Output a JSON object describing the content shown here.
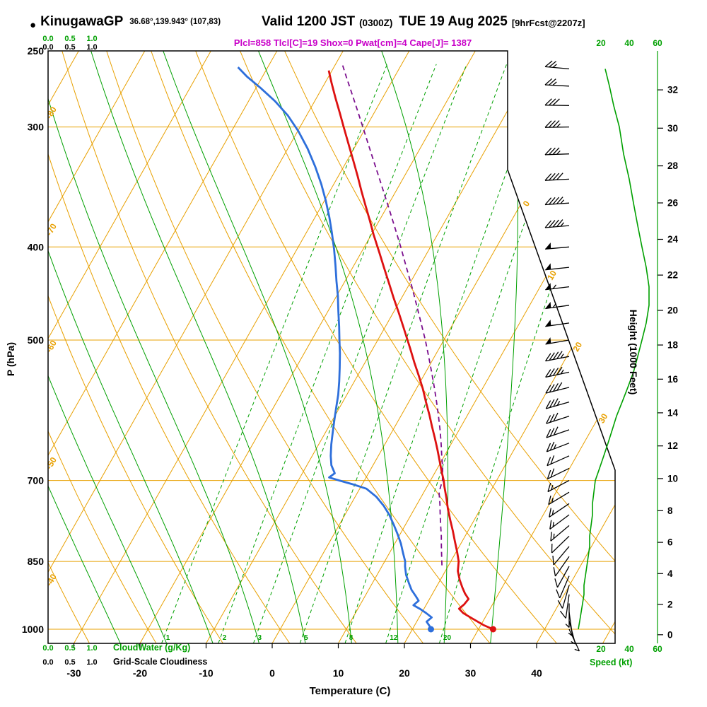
{
  "header": {
    "bullet": "●",
    "station": "KinugawaGP",
    "coords": "36.68°,139.943° (107,83)",
    "valid": "Valid 1200 JST",
    "zulu": "(0300Z)",
    "date": "TUE 19 Aug 2025",
    "fcst": "[9hrFcst@2207z]",
    "params": "Plcl=858 Tlcl[C]=19 Shox=0 Pwat[cm]=4 Cape[J]= 1387"
  },
  "axes": {
    "pressure_title": "P (hPa)",
    "temp_title": "Temperature (C)",
    "height_title": "Height (1000 Feet)",
    "speed_title": "Speed (kt)",
    "pressure_ticks": [
      250,
      300,
      400,
      500,
      700,
      850,
      1000
    ],
    "temp_ticks": [
      -30,
      -20,
      -10,
      0,
      10,
      20,
      30,
      40
    ],
    "height_ticks": [
      0,
      2,
      4,
      6,
      8,
      10,
      12,
      14,
      16,
      18,
      20,
      22,
      24,
      26,
      28,
      30,
      32
    ],
    "speed_ticks": [
      20,
      40,
      60
    ]
  },
  "scales": {
    "ticks": [
      "0.0",
      "0.5",
      "1.0"
    ],
    "cloudwater_label": "CloudWater (g/Kg)",
    "cloudiness_label": "Grid-Scale Cloudiness"
  },
  "colors": {
    "orange": "#E8A000",
    "green": "#00A000",
    "red": "#DD1111",
    "blue": "#2E6FDB",
    "purple": "#7B0F8E",
    "magenta": "#C800C8",
    "black": "#000000"
  },
  "chart_data": {
    "type": "skew-t-log-p",
    "pressure_range_hpa": [
      250,
      1034
    ],
    "pressure_lines_hpa": [
      300,
      400,
      500,
      700,
      850,
      1000
    ],
    "isotherm_step_c": 10,
    "isotherm_labels_left_c": [
      -40,
      -50,
      -60,
      -70,
      -80
    ],
    "isotherm_labels_right_c": [
      0,
      10,
      20,
      30
    ],
    "dry_adiabat_theta_c": [
      -60,
      -50,
      -40,
      -30,
      -20,
      -10,
      0,
      10,
      20,
      30,
      40,
      50,
      60
    ],
    "moist_adiabat_starts_c": [
      33,
      26,
      19,
      12,
      5,
      -2,
      -9,
      -16,
      -23
    ],
    "mixing_ratio_g_per_kg": [
      1,
      2,
      3,
      5,
      8,
      12,
      20
    ],
    "temperature_profile_p_c": [
      [
        1000,
        32.2
      ],
      [
        990,
        30.4
      ],
      [
        975,
        28.2
      ],
      [
        962,
        26.3
      ],
      [
        952,
        25.3
      ],
      [
        942,
        25.7
      ],
      [
        930,
        25.9
      ],
      [
        918,
        24.9
      ],
      [
        905,
        24.0
      ],
      [
        888,
        22.9
      ],
      [
        870,
        21.9
      ],
      [
        850,
        21.2
      ],
      [
        830,
        20.1
      ],
      [
        810,
        18.9
      ],
      [
        790,
        17.7
      ],
      [
        770,
        16.4
      ],
      [
        750,
        15.1
      ],
      [
        730,
        13.9
      ],
      [
        710,
        12.6
      ],
      [
        700,
        12.0
      ],
      [
        685,
        10.9
      ],
      [
        668,
        9.7
      ],
      [
        650,
        8.4
      ],
      [
        632,
        7.0
      ],
      [
        615,
        5.6
      ],
      [
        598,
        4.2
      ],
      [
        580,
        2.6
      ],
      [
        562,
        1.0
      ],
      [
        545,
        -0.7
      ],
      [
        528,
        -2.5
      ],
      [
        510,
        -4.4
      ],
      [
        500,
        -5.5
      ],
      [
        485,
        -7.2
      ],
      [
        468,
        -9.2
      ],
      [
        452,
        -11.2
      ],
      [
        436,
        -13.2
      ],
      [
        420,
        -15.3
      ],
      [
        405,
        -17.3
      ],
      [
        400,
        -18.0
      ],
      [
        388,
        -19.7
      ],
      [
        375,
        -21.5
      ],
      [
        362,
        -23.4
      ],
      [
        350,
        -25.2
      ],
      [
        338,
        -27.0
      ],
      [
        325,
        -29.1
      ],
      [
        312,
        -31.3
      ],
      [
        300,
        -33.4
      ],
      [
        290,
        -35.2
      ],
      [
        280,
        -37.1
      ],
      [
        270,
        -39.0
      ],
      [
        262,
        -40.5
      ]
    ],
    "dewpoint_profile_p_c": [
      [
        1000,
        22.8
      ],
      [
        992,
        22.3
      ],
      [
        982,
        21.5
      ],
      [
        972,
        21.9
      ],
      [
        962,
        20.7
      ],
      [
        953,
        19.5
      ],
      [
        944,
        18.1
      ],
      [
        934,
        18.5
      ],
      [
        924,
        17.7
      ],
      [
        910,
        16.5
      ],
      [
        895,
        15.5
      ],
      [
        878,
        14.4
      ],
      [
        860,
        13.5
      ],
      [
        850,
        13.1
      ],
      [
        832,
        12.0
      ],
      [
        814,
        10.9
      ],
      [
        796,
        9.6
      ],
      [
        778,
        8.2
      ],
      [
        760,
        6.7
      ],
      [
        744,
        5.1
      ],
      [
        728,
        3.2
      ],
      [
        714,
        1.0
      ],
      [
        706,
        -1.6
      ],
      [
        700,
        -3.8
      ],
      [
        695,
        -5.6
      ],
      [
        688,
        -5.1
      ],
      [
        675,
        -6.3
      ],
      [
        660,
        -7.2
      ],
      [
        642,
        -8.1
      ],
      [
        624,
        -8.9
      ],
      [
        606,
        -9.7
      ],
      [
        588,
        -10.5
      ],
      [
        570,
        -11.3
      ],
      [
        552,
        -12.3
      ],
      [
        534,
        -13.4
      ],
      [
        516,
        -14.6
      ],
      [
        500,
        -15.8
      ],
      [
        484,
        -17.0
      ],
      [
        467,
        -18.4
      ],
      [
        450,
        -19.8
      ],
      [
        434,
        -21.3
      ],
      [
        418,
        -22.8
      ],
      [
        402,
        -24.4
      ],
      [
        386,
        -26.2
      ],
      [
        372,
        -27.9
      ],
      [
        358,
        -29.8
      ],
      [
        344,
        -31.9
      ],
      [
        330,
        -34.3
      ],
      [
        316,
        -37.0
      ],
      [
        303,
        -39.9
      ],
      [
        292,
        -42.8
      ],
      [
        282,
        -46.0
      ],
      [
        273,
        -49.4
      ],
      [
        266,
        -52.3
      ],
      [
        260,
        -54.5
      ]
    ],
    "parcel_profile_p_c": [
      [
        858,
        19.0
      ],
      [
        840,
        18.2
      ],
      [
        820,
        17.3
      ],
      [
        800,
        16.4
      ],
      [
        780,
        15.4
      ],
      [
        760,
        14.4
      ],
      [
        740,
        13.4
      ],
      [
        720,
        12.3
      ],
      [
        700,
        11.8
      ],
      [
        680,
        10.8
      ],
      [
        660,
        9.6
      ],
      [
        640,
        8.4
      ],
      [
        620,
        7.1
      ],
      [
        600,
        5.7
      ],
      [
        580,
        4.2
      ],
      [
        560,
        2.6
      ],
      [
        540,
        0.9
      ],
      [
        520,
        -0.9
      ],
      [
        500,
        -2.8
      ],
      [
        480,
        -4.9
      ],
      [
        460,
        -7.1
      ],
      [
        440,
        -9.4
      ],
      [
        420,
        -11.9
      ],
      [
        400,
        -14.5
      ],
      [
        380,
        -17.3
      ],
      [
        360,
        -20.3
      ],
      [
        340,
        -23.5
      ],
      [
        320,
        -26.9
      ],
      [
        300,
        -30.5
      ],
      [
        288,
        -32.8
      ],
      [
        276,
        -35.2
      ],
      [
        266,
        -37.3
      ],
      [
        258,
        -39.0
      ]
    ],
    "wind_profile_p_dir_kt": [
      [
        1000,
        155,
        4
      ],
      [
        980,
        165,
        5
      ],
      [
        960,
        172,
        6
      ],
      [
        940,
        180,
        7
      ],
      [
        920,
        188,
        8
      ],
      [
        900,
        196,
        8
      ],
      [
        880,
        203,
        9
      ],
      [
        860,
        209,
        10
      ],
      [
        840,
        215,
        11
      ],
      [
        820,
        220,
        12
      ],
      [
        800,
        226,
        12
      ],
      [
        780,
        230,
        13
      ],
      [
        760,
        233,
        14
      ],
      [
        740,
        236,
        14
      ],
      [
        720,
        239,
        15
      ],
      [
        700,
        242,
        16
      ],
      [
        680,
        244,
        19
      ],
      [
        660,
        246,
        22
      ],
      [
        640,
        249,
        25
      ],
      [
        620,
        251,
        28
      ],
      [
        600,
        252,
        31
      ],
      [
        580,
        254,
        35
      ],
      [
        560,
        256,
        39
      ],
      [
        540,
        258,
        43
      ],
      [
        520,
        259,
        46
      ],
      [
        500,
        260,
        49
      ],
      [
        480,
        262,
        52
      ],
      [
        460,
        262,
        54
      ],
      [
        440,
        263,
        54
      ],
      [
        420,
        264,
        52
      ],
      [
        400,
        265,
        49
      ],
      [
        380,
        265,
        46
      ],
      [
        360,
        266,
        43
      ],
      [
        340,
        267,
        40
      ],
      [
        320,
        268,
        36
      ],
      [
        300,
        269,
        33
      ],
      [
        285,
        271,
        29
      ],
      [
        272,
        273,
        26
      ],
      [
        261,
        275,
        23
      ]
    ],
    "surface_point": {
      "pressure_hpa": 1000,
      "temp_c": 32.2,
      "dewpoint_c": 22.8
    }
  }
}
